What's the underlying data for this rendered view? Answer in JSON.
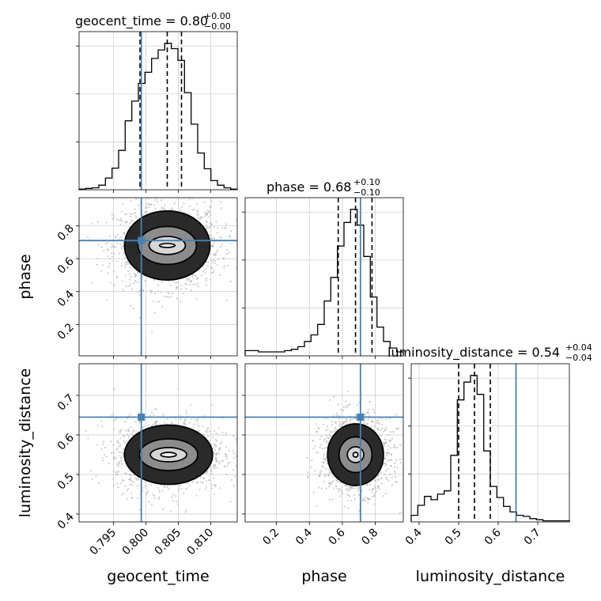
{
  "chart_data": {
    "type": "corner",
    "parameters": [
      "geocent_time",
      "phase",
      "luminosity_distance"
    ],
    "titles": [
      {
        "param": "geocent_time",
        "label": "geocent_time = 0.80",
        "plus": "+0.00",
        "minus": "−0.00"
      },
      {
        "param": "phase",
        "label": "phase = 0.68",
        "plus": "+0.10",
        "minus": "−0.10"
      },
      {
        "param": "luminosity_distance",
        "label": "luminosity_distance = 0.54",
        "plus": "+0.04",
        "minus": "−0.04"
      }
    ],
    "axis_labels": {
      "x": [
        "geocent_time",
        "phase",
        "luminosity_distance"
      ],
      "y": [
        "phase",
        "luminosity_distance"
      ]
    },
    "ranges": {
      "geocent_time": [
        0.7897,
        0.8141
      ],
      "phase": [
        0.01,
        0.97
      ],
      "luminosity_distance": [
        0.38,
        0.78
      ]
    },
    "ticks": {
      "geocent_time": [
        0.795,
        0.8,
        0.805,
        0.81
      ],
      "geocent_time_labels": [
        "0.795",
        "0.800",
        "0.805",
        "0.810"
      ],
      "phase": [
        0.2,
        0.4,
        0.6,
        0.8
      ],
      "phase_labels": [
        "0.2",
        "0.4",
        "0.6",
        "0.8"
      ],
      "luminosity_distance": [
        0.4,
        0.5,
        0.6,
        0.7
      ],
      "luminosity_distance_labels": [
        "0.4",
        "0.5",
        "0.6",
        "0.7"
      ]
    },
    "truths": {
      "geocent_time": 0.7993,
      "phase": 0.71,
      "luminosity_distance": 0.645
    },
    "quantiles": {
      "geocent_time": [
        0.7991,
        0.8033,
        0.8055
      ],
      "phase": [
        0.575,
        0.68,
        0.78
      ],
      "luminosity_distance": [
        0.5,
        0.54,
        0.58
      ]
    },
    "histograms": {
      "geocent_time": [
        1,
        2,
        3,
        7,
        18,
        33,
        60,
        105,
        135,
        162,
        179,
        200,
        213,
        223,
        215,
        197,
        148,
        100,
        56,
        32,
        14,
        7,
        3,
        1
      ],
      "phase": [
        4,
        4,
        3,
        3,
        3,
        3,
        4,
        5,
        7,
        11,
        16,
        24,
        42,
        60,
        84,
        102,
        112,
        100,
        76,
        45,
        22,
        11,
        6,
        3
      ],
      "luminosity_distance": [
        6,
        15,
        23,
        20,
        25,
        28,
        60,
        110,
        126,
        132,
        115,
        64,
        32,
        22,
        14,
        9,
        6,
        5,
        3,
        2,
        1,
        1,
        1,
        1
      ]
    },
    "contours": {
      "phase_vs_geocent_time": {
        "center": [
          0.8033,
          0.68
        ],
        "levels": [
          {
            "rx": 0.0012,
            "ry": 0.012
          },
          {
            "rx": 0.0028,
            "ry": 0.055
          },
          {
            "rx": 0.0045,
            "ry": 0.115
          },
          {
            "rx": 0.0066,
            "ry": 0.21
          }
        ]
      },
      "luminosity_distance_vs_geocent_time": {
        "center": [
          0.8035,
          0.55
        ],
        "levels": [
          {
            "rx": 0.0012,
            "ry": 0.006
          },
          {
            "rx": 0.0028,
            "ry": 0.018
          },
          {
            "rx": 0.0045,
            "ry": 0.04
          },
          {
            "rx": 0.0068,
            "ry": 0.075
          }
        ]
      },
      "luminosity_distance_vs_phase": {
        "center": [
          0.68,
          0.55
        ],
        "levels": [
          {
            "rx": 0.015,
            "ry": 0.006
          },
          {
            "rx": 0.05,
            "ry": 0.02
          },
          {
            "rx": 0.1,
            "ry": 0.045
          },
          {
            "rx": 0.17,
            "ry": 0.078
          }
        ]
      }
    },
    "colors": {
      "truth": "#4682b4",
      "hist": "#000000",
      "grid": "#c8c8c8",
      "points": "#a8a8a8"
    }
  }
}
